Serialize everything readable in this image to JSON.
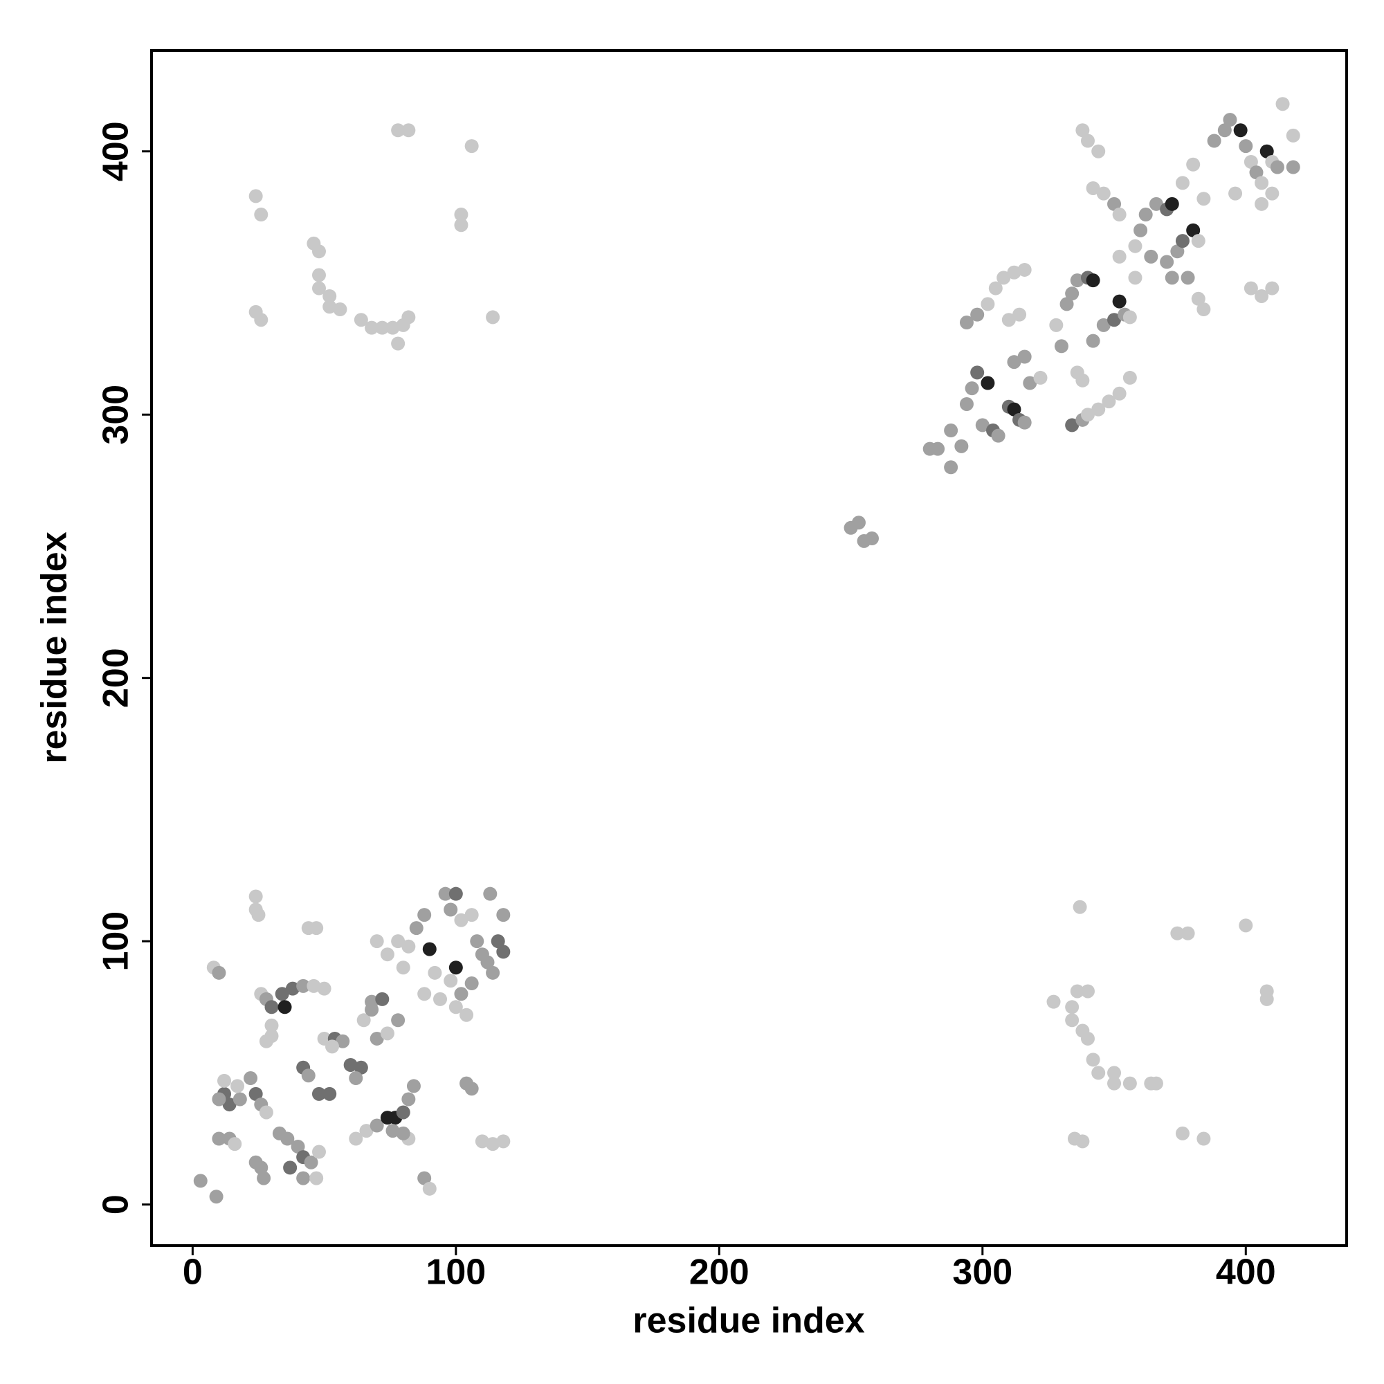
{
  "chart_data": {
    "type": "scatter",
    "xlabel": "residue index",
    "ylabel": "residue index",
    "xlim": [
      -15.6,
      438.3
    ],
    "ylim": [
      -15.6,
      438.3
    ],
    "xticks": [
      0,
      100,
      200,
      300,
      400
    ],
    "yticks": [
      0,
      100,
      200,
      300,
      400
    ],
    "grid": false,
    "x": [
      3,
      9,
      8,
      10,
      10,
      14,
      16,
      12,
      14,
      10,
      18,
      12,
      17,
      22,
      24,
      26,
      28,
      24,
      26,
      27,
      24,
      24,
      25,
      26,
      28,
      30,
      34,
      35,
      30,
      28,
      30,
      33,
      36,
      37,
      40,
      42,
      42,
      45,
      47,
      48,
      38,
      42,
      46,
      50,
      44,
      47,
      42,
      44,
      48,
      52,
      50,
      54,
      57,
      53,
      60,
      64,
      62,
      65,
      68,
      72,
      68,
      70,
      74,
      78,
      62,
      66,
      70,
      74,
      77,
      80,
      76,
      82,
      84,
      82,
      80,
      70,
      74,
      78,
      80,
      82,
      85,
      88,
      90,
      92,
      88,
      94,
      96,
      100,
      98,
      102,
      100,
      98,
      102,
      104,
      100,
      106,
      106,
      108,
      110,
      112,
      114,
      113,
      116,
      118,
      118,
      104,
      106,
      110,
      114,
      118,
      88,
      90,
      24,
      26,
      24,
      26,
      46,
      48,
      48,
      48,
      52,
      52,
      56,
      64,
      68,
      72,
      76,
      78,
      80,
      82,
      78,
      82,
      102,
      102,
      106,
      114,
      327,
      334,
      334,
      336,
      338,
      340,
      340,
      342,
      344,
      350,
      350,
      356,
      364,
      366,
      335,
      338,
      374,
      378,
      376,
      384,
      400,
      408,
      408,
      337,
      250,
      253,
      255,
      258,
      280,
      283,
      288,
      288,
      292,
      294,
      296,
      298,
      302,
      300,
      304,
      306,
      310,
      312,
      314,
      316,
      294,
      298,
      302,
      305,
      308,
      312,
      316,
      310,
      314,
      312,
      316,
      318,
      322,
      328,
      330,
      332,
      334,
      336,
      340,
      342,
      336,
      338,
      334,
      338,
      340,
      344,
      348,
      352,
      356,
      342,
      346,
      350,
      352,
      354,
      356,
      338,
      340,
      344,
      342,
      346,
      350,
      352,
      352,
      358,
      360,
      362,
      366,
      370,
      372,
      358,
      364,
      370,
      374,
      376,
      380,
      382,
      372,
      378,
      382,
      384,
      376,
      380,
      388,
      392,
      394,
      398,
      400,
      402,
      404,
      406,
      408,
      410,
      412,
      406,
      410,
      402,
      406,
      410,
      414,
      418,
      418,
      384,
      396
    ],
    "y": [
      9,
      3,
      90,
      88,
      25,
      25,
      23,
      42,
      38,
      40,
      40,
      47,
      45,
      48,
      42,
      38,
      35,
      16,
      14,
      10,
      112,
      117,
      110,
      80,
      78,
      75,
      80,
      75,
      68,
      62,
      64,
      27,
      25,
      14,
      22,
      18,
      10,
      16,
      10,
      20,
      82,
      83,
      83,
      82,
      105,
      105,
      52,
      49,
      42,
      42,
      63,
      63,
      62,
      60,
      53,
      52,
      48,
      70,
      77,
      78,
      74,
      63,
      65,
      70,
      25,
      28,
      30,
      33,
      33,
      35,
      28,
      40,
      45,
      25,
      27,
      100,
      95,
      100,
      90,
      98,
      105,
      110,
      97,
      88,
      80,
      78,
      118,
      118,
      112,
      108,
      90,
      85,
      80,
      72,
      75,
      84,
      110,
      100,
      95,
      92,
      88,
      118,
      100,
      96,
      110,
      46,
      44,
      24,
      23,
      24,
      10,
      6,
      383,
      376,
      339,
      336,
      365,
      362,
      353,
      348,
      345,
      341,
      340,
      336,
      333,
      333,
      333,
      327,
      334,
      337,
      408,
      408,
      376,
      372,
      402,
      337,
      77,
      75,
      70,
      81,
      66,
      63,
      81,
      55,
      50,
      50,
      46,
      46,
      46,
      46,
      25,
      24,
      103,
      103,
      27,
      25,
      106,
      81,
      78,
      113,
      257,
      259,
      252,
      253,
      287,
      287,
      294,
      280,
      288,
      304,
      310,
      316,
      312,
      296,
      294,
      292,
      303,
      302,
      298,
      297,
      335,
      338,
      342,
      348,
      352,
      354,
      355,
      336,
      338,
      320,
      322,
      312,
      314,
      334,
      326,
      342,
      346,
      351,
      352,
      351,
      316,
      313,
      296,
      298,
      300,
      302,
      305,
      308,
      314,
      328,
      334,
      336,
      343,
      338,
      337,
      408,
      404,
      400,
      386,
      384,
      380,
      376,
      360,
      364,
      370,
      376,
      380,
      378,
      380,
      352,
      360,
      358,
      362,
      366,
      370,
      366,
      352,
      352,
      344,
      340,
      388,
      395,
      404,
      408,
      412,
      408,
      402,
      396,
      392,
      388,
      400,
      396,
      394,
      380,
      384,
      348,
      345,
      348,
      418,
      406,
      394,
      382,
      384
    ],
    "colors": [
      "#a0a0a0",
      "#a0a0a0",
      "#c8c8c8",
      "#a0a0a0",
      "#a0a0a0",
      "#a0a0a0",
      "#c8c8c8",
      "#707070",
      "#707070",
      "#a0a0a0",
      "#a0a0a0",
      "#c8c8c8",
      "#c8c8c8",
      "#a0a0a0",
      "#707070",
      "#a0a0a0",
      "#c8c8c8",
      "#a0a0a0",
      "#a0a0a0",
      "#a0a0a0",
      "#c8c8c8",
      "#c8c8c8",
      "#c8c8c8",
      "#c8c8c8",
      "#a0a0a0",
      "#707070",
      "#707070",
      "#202020",
      "#c8c8c8",
      "#c8c8c8",
      "#c8c8c8",
      "#a0a0a0",
      "#a0a0a0",
      "#707070",
      "#a0a0a0",
      "#707070",
      "#a0a0a0",
      "#a0a0a0",
      "#c8c8c8",
      "#c8c8c8",
      "#707070",
      "#a0a0a0",
      "#c8c8c8",
      "#c8c8c8",
      "#c8c8c8",
      "#c8c8c8",
      "#707070",
      "#a0a0a0",
      "#707070",
      "#707070",
      "#c8c8c8",
      "#707070",
      "#a0a0a0",
      "#c8c8c8",
      "#707070",
      "#707070",
      "#a0a0a0",
      "#c8c8c8",
      "#a0a0a0",
      "#707070",
      "#a0a0a0",
      "#a0a0a0",
      "#c8c8c8",
      "#a0a0a0",
      "#c8c8c8",
      "#c8c8c8",
      "#a0a0a0",
      "#202020",
      "#202020",
      "#707070",
      "#a0a0a0",
      "#a0a0a0",
      "#a0a0a0",
      "#c8c8c8",
      "#a0a0a0",
      "#c8c8c8",
      "#c8c8c8",
      "#c8c8c8",
      "#c8c8c8",
      "#c8c8c8",
      "#a0a0a0",
      "#a0a0a0",
      "#202020",
      "#c8c8c8",
      "#c8c8c8",
      "#c8c8c8",
      "#a0a0a0",
      "#707070",
      "#a0a0a0",
      "#c8c8c8",
      "#202020",
      "#c8c8c8",
      "#a0a0a0",
      "#c8c8c8",
      "#c8c8c8",
      "#a0a0a0",
      "#c8c8c8",
      "#a0a0a0",
      "#a0a0a0",
      "#a0a0a0",
      "#a0a0a0",
      "#a0a0a0",
      "#707070",
      "#707070",
      "#a0a0a0",
      "#a0a0a0",
      "#a0a0a0",
      "#c8c8c8",
      "#c8c8c8",
      "#c8c8c8",
      "#a0a0a0",
      "#c8c8c8",
      "#c8c8c8",
      "#c8c8c8",
      "#c8c8c8",
      "#c8c8c8",
      "#c8c8c8",
      "#c8c8c8",
      "#c8c8c8",
      "#c8c8c8",
      "#c8c8c8",
      "#c8c8c8",
      "#c8c8c8",
      "#c8c8c8",
      "#c8c8c8",
      "#c8c8c8",
      "#c8c8c8",
      "#c8c8c8",
      "#c8c8c8",
      "#c8c8c8",
      "#c8c8c8",
      "#c8c8c8",
      "#c8c8c8",
      "#c8c8c8",
      "#c8c8c8",
      "#c8c8c8",
      "#c8c8c8",
      "#c8c8c8",
      "#c8c8c8",
      "#c8c8c8",
      "#c8c8c8",
      "#c8c8c8",
      "#c8c8c8",
      "#c8c8c8",
      "#c8c8c8",
      "#c8c8c8",
      "#c8c8c8",
      "#c8c8c8",
      "#c8c8c8",
      "#c8c8c8",
      "#c8c8c8",
      "#c8c8c8",
      "#c8c8c8",
      "#c8c8c8",
      "#c8c8c8",
      "#c8c8c8",
      "#c8c8c8",
      "#c8c8c8",
      "#c8c8c8",
      "#c8c8c8",
      "#a0a0a0",
      "#a0a0a0",
      "#a0a0a0",
      "#a0a0a0",
      "#a0a0a0",
      "#a0a0a0",
      "#a0a0a0",
      "#a0a0a0",
      "#a0a0a0",
      "#a0a0a0",
      "#a0a0a0",
      "#707070",
      "#202020",
      "#a0a0a0",
      "#707070",
      "#a0a0a0",
      "#707070",
      "#202020",
      "#707070",
      "#a0a0a0",
      "#a0a0a0",
      "#a0a0a0",
      "#c8c8c8",
      "#c8c8c8",
      "#c8c8c8",
      "#c8c8c8",
      "#c8c8c8",
      "#c8c8c8",
      "#c8c8c8",
      "#a0a0a0",
      "#a0a0a0",
      "#a0a0a0",
      "#c8c8c8",
      "#c8c8c8",
      "#a0a0a0",
      "#a0a0a0",
      "#a0a0a0",
      "#a0a0a0",
      "#707070",
      "#202020",
      "#c8c8c8",
      "#c8c8c8",
      "#707070",
      "#a0a0a0",
      "#c8c8c8",
      "#c8c8c8",
      "#c8c8c8",
      "#c8c8c8",
      "#c8c8c8",
      "#a0a0a0",
      "#a0a0a0",
      "#707070",
      "#202020",
      "#a0a0a0",
      "#c8c8c8",
      "#c8c8c8",
      "#c8c8c8",
      "#c8c8c8",
      "#c8c8c8",
      "#c8c8c8",
      "#a0a0a0",
      "#c8c8c8",
      "#c8c8c8",
      "#c8c8c8",
      "#a0a0a0",
      "#a0a0a0",
      "#a0a0a0",
      "#707070",
      "#202020",
      "#c8c8c8",
      "#a0a0a0",
      "#a0a0a0",
      "#a0a0a0",
      "#707070",
      "#202020",
      "#c8c8c8",
      "#a0a0a0",
      "#a0a0a0",
      "#c8c8c8",
      "#c8c8c8",
      "#c8c8c8",
      "#c8c8c8",
      "#a0a0a0",
      "#a0a0a0",
      "#a0a0a0",
      "#202020",
      "#a0a0a0",
      "#c8c8c8",
      "#a0a0a0",
      "#c8c8c8",
      "#202020",
      "#c8c8c8",
      "#a0a0a0",
      "#c8c8c8",
      "#c8c8c8",
      "#c8c8c8",
      "#c8c8c8",
      "#c8c8c8",
      "#c8c8c8",
      "#c8c8c8",
      "#a0a0a0",
      "#c8c8c8",
      "#c8c8c8"
    ]
  }
}
